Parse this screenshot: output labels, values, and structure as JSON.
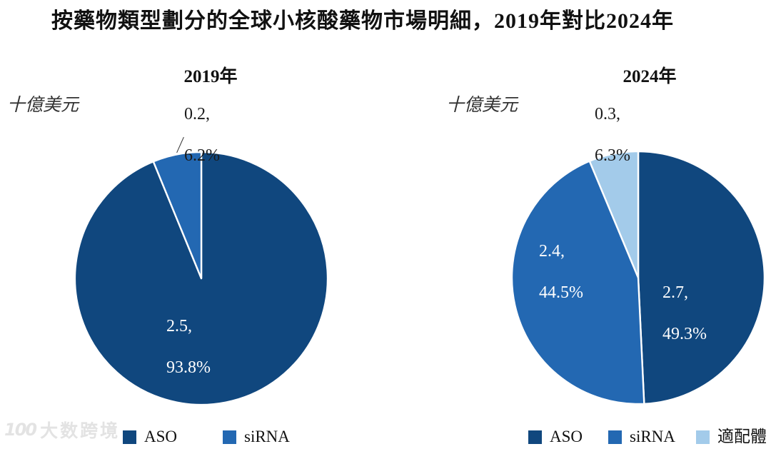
{
  "title": "按藥物類型劃分的全球小核酸藥物市場明細，2019年對比2024年",
  "watermark": {
    "logo": "100",
    "text": "大数跨境"
  },
  "colors": {
    "aso": "#10477E",
    "sirna": "#2368B2",
    "aptamer": "#A3CBEA",
    "title_text": "#111111",
    "outside_label": "#1A1A1A",
    "inside_label": "#FFFFFF",
    "slice_border": "#FFFFFF",
    "watermark": "#E3E3E3"
  },
  "chart_data": [
    {
      "type": "pie",
      "title": "2019年",
      "unit": "十億美元",
      "labels": [
        "ASO",
        "siRNA"
      ],
      "values": [
        2.5,
        0.2
      ],
      "percents": [
        93.8,
        6.2
      ],
      "colors": [
        "#10477E",
        "#2368B2"
      ],
      "start_angle_deg": 0,
      "direction": "clockwise",
      "legend_position": "bottom",
      "slice_label_lines": [
        [
          "2.5,",
          "93.8%"
        ],
        [
          "0.2,",
          "6.2%"
        ]
      ],
      "slice_label_placement": [
        "inside",
        "outside"
      ],
      "has_leader_line": true
    },
    {
      "type": "pie",
      "title": "2024年",
      "unit": "十億美元",
      "labels": [
        "ASO",
        "siRNA",
        "適配體"
      ],
      "values": [
        2.7,
        2.4,
        0.3
      ],
      "percents": [
        49.3,
        44.5,
        6.3
      ],
      "colors": [
        "#10477E",
        "#2368B2",
        "#A3CBEA"
      ],
      "start_angle_deg": 0,
      "direction": "clockwise",
      "legend_position": "bottom",
      "slice_label_lines": [
        [
          "2.7,",
          "49.3%"
        ],
        [
          "2.4,",
          "44.5%"
        ],
        [
          "0.3,",
          "6.3%"
        ]
      ],
      "slice_label_placement": [
        "inside",
        "inside",
        "outside"
      ],
      "has_leader_line": false
    }
  ]
}
